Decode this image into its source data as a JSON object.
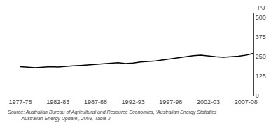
{
  "chart_data": {
    "type": "line",
    "ylabel": "PJ",
    "annotations": [
      "Source: Australian Bureau of Agricultural and Resource Economics, ‘Australian Energy Statistics\n        - Australian Energy Update’, 2009, Table J"
    ],
    "categories": [
      "1977-78",
      null,
      null,
      null,
      null,
      "1982-83",
      null,
      null,
      null,
      null,
      "1987-88",
      null,
      null,
      null,
      null,
      "1992-93",
      null,
      null,
      null,
      null,
      "1997-98",
      null,
      null,
      null,
      null,
      "2002-03",
      null,
      null,
      null,
      null,
      "2007-08",
      null
    ],
    "values": [
      185,
      180,
      178,
      182,
      185,
      183,
      188,
      190,
      193,
      197,
      200,
      205,
      207,
      210,
      205,
      208,
      215,
      218,
      222,
      228,
      235,
      240,
      248,
      255,
      258,
      252,
      248,
      245,
      248,
      252,
      258,
      270
    ],
    "color": "#000000",
    "ylim": [
      0,
      530
    ],
    "yticks": [
      0,
      125,
      250,
      375,
      500
    ],
    "grid": false
  }
}
